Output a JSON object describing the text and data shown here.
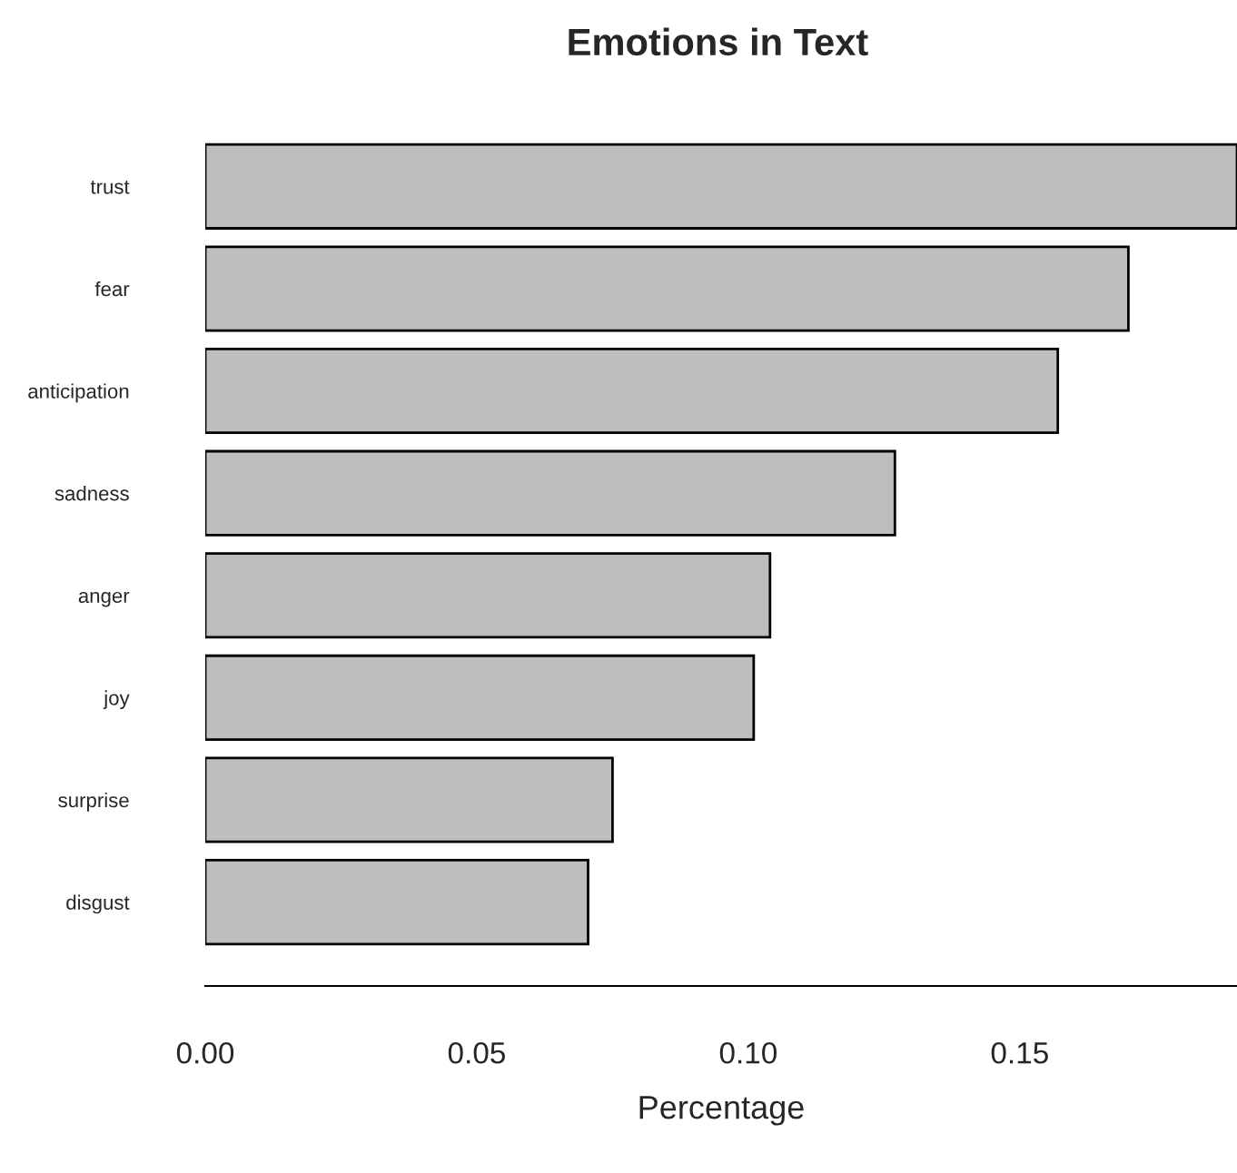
{
  "chart_data": {
    "type": "bar",
    "orientation": "horizontal",
    "title": "Emotions in Text",
    "xlabel": "Percentage",
    "categories": [
      "trust",
      "fear",
      "anticipation",
      "sadness",
      "anger",
      "joy",
      "surprise",
      "disgust"
    ],
    "values": [
      0.19,
      0.17,
      0.157,
      0.127,
      0.104,
      0.101,
      0.075,
      0.0705
    ],
    "color": "#bebebe",
    "xlim": [
      0,
      0.19
    ],
    "xticks": [
      {
        "value": 0,
        "label": "0.00"
      },
      {
        "value": 0.05,
        "label": "0.05"
      },
      {
        "value": 0.1,
        "label": "0.10"
      },
      {
        "value": 0.15,
        "label": "0.15"
      }
    ],
    "grid": false
  }
}
